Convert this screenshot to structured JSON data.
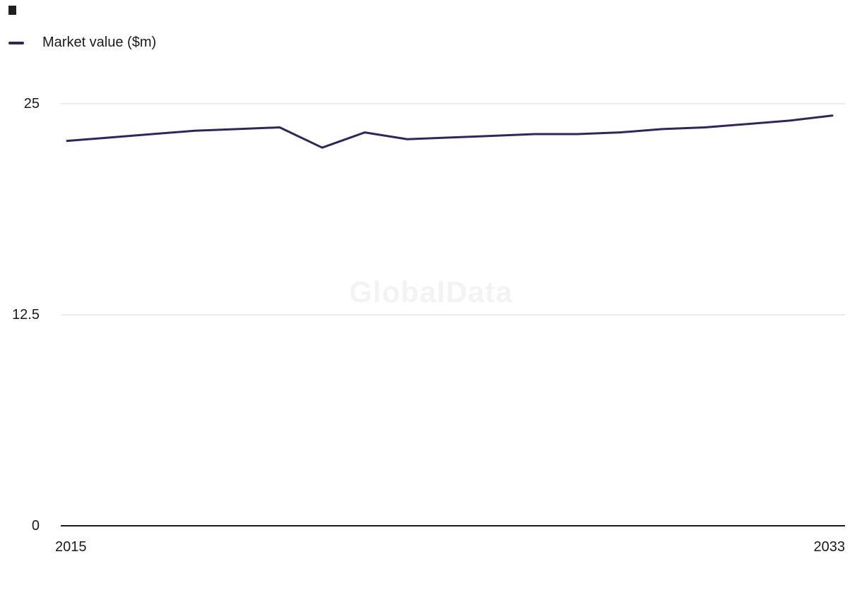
{
  "watermark": "GlobalData",
  "chart_data": {
    "type": "line",
    "title": "",
    "xlabel": "",
    "ylabel": "",
    "x": [
      2015,
      2016,
      2017,
      2018,
      2019,
      2020,
      2021,
      2022,
      2023,
      2024,
      2025,
      2026,
      2027,
      2028,
      2029,
      2030,
      2031,
      2032,
      2033
    ],
    "series": [
      {
        "name": "Market value ($m)",
        "values": [
          22.8,
          23.0,
          23.2,
          23.4,
          23.5,
          23.6,
          22.4,
          23.3,
          22.9,
          23.0,
          23.1,
          23.2,
          23.2,
          23.3,
          23.5,
          23.6,
          23.8,
          24.0,
          24.3
        ]
      }
    ],
    "ylim": [
      0,
      25
    ],
    "yticks": [
      0,
      12.5,
      25
    ],
    "ytick_labels": [
      "0",
      "12.5",
      "25"
    ],
    "xtick_labels": [
      "2015",
      "2033"
    ],
    "legend_position": "top-left",
    "grid": "horizontal",
    "line_color": "#322659",
    "grid_color": "#d9d9d9",
    "axis_color": "#1a1a1a",
    "label_color": "#1a1a1a"
  }
}
